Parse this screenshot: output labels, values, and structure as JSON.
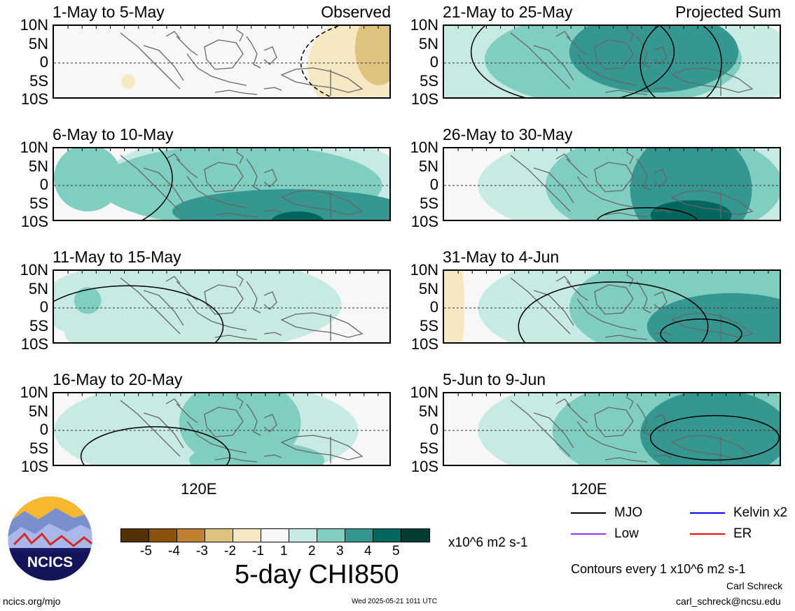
{
  "chart_data": {
    "type": "heatmap",
    "title": "5-day CHI850",
    "lat_ticks": [
      "10N",
      "5N",
      "0",
      "5S",
      "10S"
    ],
    "lon_ticks": [
      "120E"
    ],
    "panels": [
      {
        "id": "p1",
        "title": "1-May to 5-May",
        "tag": "Observed",
        "blobs": [
          {
            "cx": 0.89,
            "cy": 0.55,
            "rx": 0.14,
            "ry": 0.65,
            "v": -1
          },
          {
            "cx": 0.96,
            "cy": 0.3,
            "rx": 0.07,
            "ry": 0.5,
            "v": -2
          },
          {
            "cx": 0.22,
            "cy": 0.75,
            "rx": 0.02,
            "ry": 0.1,
            "v": -1
          }
        ],
        "mjo": [
          {
            "cx": 0.98,
            "cy": 0.5,
            "rx": 0.25,
            "ry": 0.6
          }
        ]
      },
      {
        "id": "p2",
        "title": "6-May to 10-May",
        "tag": "",
        "blobs": [
          {
            "cx": 0.6,
            "cy": 0.45,
            "rx": 0.45,
            "ry": 0.7,
            "v": 1
          },
          {
            "cx": 0.55,
            "cy": 0.5,
            "rx": 0.42,
            "ry": 0.55,
            "v": 2
          },
          {
            "cx": 0.1,
            "cy": 0.4,
            "rx": 0.1,
            "ry": 0.45,
            "v": 2
          },
          {
            "cx": 0.7,
            "cy": 0.85,
            "rx": 0.35,
            "ry": 0.3,
            "v": 3
          },
          {
            "cx": 0.72,
            "cy": 1.0,
            "rx": 0.08,
            "ry": 0.15,
            "v": 4
          }
        ],
        "mjo": [
          {
            "cx": 0.05,
            "cy": 0.4,
            "rx": 0.3,
            "ry": 0.8
          }
        ]
      },
      {
        "id": "p3",
        "title": "11-May to 15-May",
        "tag": "",
        "blobs": [
          {
            "cx": 0.4,
            "cy": 0.45,
            "rx": 0.45,
            "ry": 0.65,
            "v": 1
          },
          {
            "cx": 0.1,
            "cy": 0.8,
            "rx": 0.07,
            "ry": 0.25,
            "v": 1
          },
          {
            "cx": 0.1,
            "cy": 0.4,
            "rx": 0.04,
            "ry": 0.18,
            "v": 2
          }
        ],
        "mjo": [
          {
            "cx": 0.22,
            "cy": 0.75,
            "rx": 0.28,
            "ry": 0.55
          }
        ]
      },
      {
        "id": "p4",
        "title": "16-May to 20-May",
        "tag": "",
        "blobs": [
          {
            "cx": 0.45,
            "cy": 0.5,
            "rx": 0.45,
            "ry": 0.7,
            "v": 1
          },
          {
            "cx": 0.55,
            "cy": 0.4,
            "rx": 0.18,
            "ry": 0.6,
            "v": 2
          },
          {
            "cx": 0.6,
            "cy": 0.9,
            "rx": 0.2,
            "ry": 0.25,
            "v": 2
          }
        ],
        "mjo": [
          {
            "cx": 0.3,
            "cy": 0.85,
            "rx": 0.22,
            "ry": 0.4
          }
        ]
      },
      {
        "id": "p5",
        "title": "21-May to 25-May",
        "tag": "Projected Sum",
        "blobs": [
          {
            "cx": 0.45,
            "cy": 0.5,
            "rx": 0.6,
            "ry": 0.95,
            "v": 1
          },
          {
            "cx": 0.5,
            "cy": 0.45,
            "rx": 0.38,
            "ry": 0.65,
            "v": 2
          },
          {
            "cx": 0.62,
            "cy": 0.35,
            "rx": 0.25,
            "ry": 0.55,
            "v": 3
          }
        ],
        "mjo": [
          {
            "cx": 0.38,
            "cy": 0.35,
            "rx": 0.3,
            "ry": 0.7
          },
          {
            "cx": 0.7,
            "cy": 0.5,
            "rx": 0.12,
            "ry": 0.6
          }
        ]
      },
      {
        "id": "p6",
        "title": "26-May to 30-May",
        "tag": "",
        "blobs": [
          {
            "cx": 0.65,
            "cy": 0.5,
            "rx": 0.55,
            "ry": 0.8,
            "v": 1
          },
          {
            "cx": 0.65,
            "cy": 0.5,
            "rx": 0.35,
            "ry": 0.75,
            "v": 2
          },
          {
            "cx": 0.73,
            "cy": 0.55,
            "rx": 0.18,
            "ry": 0.8,
            "v": 3
          },
          {
            "cx": 0.73,
            "cy": 0.9,
            "rx": 0.12,
            "ry": 0.2,
            "v": 4
          }
        ],
        "mjo": [
          {
            "cx": 0.6,
            "cy": 1.0,
            "rx": 0.15,
            "ry": 0.2
          }
        ]
      },
      {
        "id": "p7",
        "title": "31-May to 4-Jun",
        "tag": "",
        "blobs": [
          {
            "cx": 0.6,
            "cy": 0.5,
            "rx": 0.5,
            "ry": 0.8,
            "v": 1
          },
          {
            "cx": 0.75,
            "cy": 0.5,
            "rx": 0.38,
            "ry": 0.75,
            "v": 2
          },
          {
            "cx": 0.85,
            "cy": 0.75,
            "rx": 0.25,
            "ry": 0.45,
            "v": 3
          },
          {
            "cx": 0.02,
            "cy": 0.5,
            "rx": 0.04,
            "ry": 1.0,
            "v": -1
          }
        ],
        "mjo": [
          {
            "cx": 0.5,
            "cy": 0.75,
            "rx": 0.28,
            "ry": 0.6
          },
          {
            "cx": 0.76,
            "cy": 0.85,
            "rx": 0.12,
            "ry": 0.2
          }
        ]
      },
      {
        "id": "p8",
        "title": "5-Jun to 9-Jun",
        "tag": "",
        "blobs": [
          {
            "cx": 0.6,
            "cy": 0.5,
            "rx": 0.5,
            "ry": 0.8,
            "v": 1
          },
          {
            "cx": 0.7,
            "cy": 0.5,
            "rx": 0.38,
            "ry": 0.75,
            "v": 2
          },
          {
            "cx": 0.8,
            "cy": 0.55,
            "rx": 0.22,
            "ry": 0.6,
            "v": 3
          }
        ],
        "mjo": [
          {
            "cx": 0.8,
            "cy": 0.6,
            "rx": 0.19,
            "ry": 0.3
          }
        ]
      }
    ],
    "colorbar": {
      "colors": [
        "#543005",
        "#8c510a",
        "#bf812d",
        "#dfc27d",
        "#f6e8c3",
        "#f7f7f7",
        "#c7eae5",
        "#80cdc1",
        "#35978f",
        "#01665e",
        "#003c30"
      ],
      "ticks": [
        "-5",
        "-4",
        "-3",
        "-2",
        "-1",
        "1",
        "2",
        "3",
        "4",
        "5"
      ],
      "units": "x10^6 m2 s-1"
    },
    "legend": [
      {
        "name": "MJO",
        "color": "#000000"
      },
      {
        "name": "Kelvin x2",
        "color": "#0000ff"
      },
      {
        "name": "Low",
        "color": "#9933ff"
      },
      {
        "name": "ER",
        "color": "#ff0000"
      }
    ]
  },
  "contour_note": "Contours every 1 x10^6 m2 s-1",
  "author": "Carl Schreck",
  "email": "carl_schreck@ncsu.edu",
  "site": "ncics.org/mjo",
  "timestamp": "Wed 2025-05-21 1011 UTC",
  "logo_text": "NCICS"
}
